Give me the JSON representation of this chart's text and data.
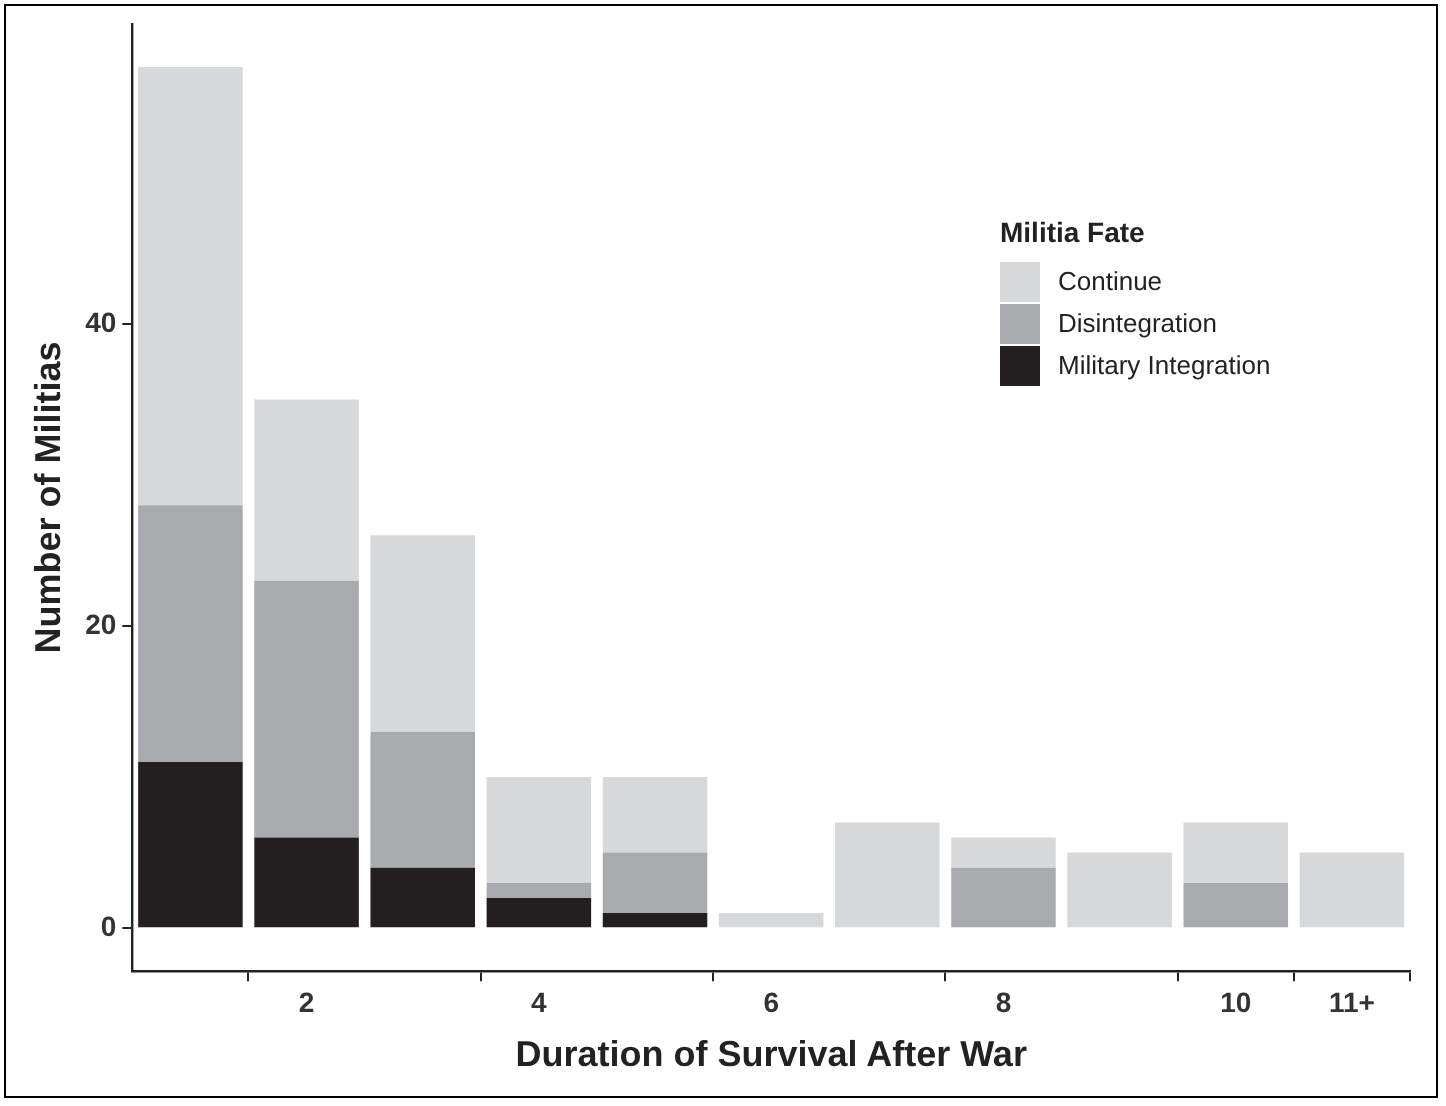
{
  "chart_data": {
    "type": "bar",
    "stacked": true,
    "xlabel": "Duration of Survival After War",
    "ylabel": "Number of Militias",
    "legend_title": "Militia Fate",
    "legend": "top right",
    "grid": false,
    "categories": [
      null,
      "2",
      null,
      "4",
      null,
      "6",
      null,
      "8",
      null,
      "10",
      "11+"
    ],
    "ylim": [
      -2.85,
      59.85
    ],
    "yticks": [
      0,
      20,
      40
    ],
    "series": [
      {
        "name": "Military Integration",
        "color": "#231f20",
        "values": [
          11,
          6,
          4,
          2,
          1,
          0,
          0,
          0,
          0,
          0,
          0
        ]
      },
      {
        "name": "Disintegration",
        "color": "#a9aaad",
        "values": [
          17,
          17,
          9,
          1,
          4,
          0,
          0,
          4,
          0,
          3,
          0
        ]
      },
      {
        "name": "Continue",
        "color": "#d7d8da",
        "values": [
          29,
          12,
          13,
          7,
          5,
          1,
          7,
          2,
          5,
          4,
          5
        ]
      }
    ]
  }
}
